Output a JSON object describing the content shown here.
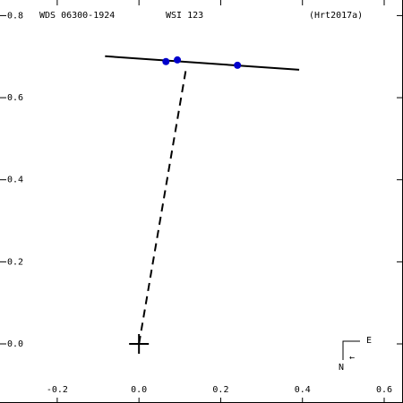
{
  "chart_data": {
    "type": "scatter",
    "title": "WDS 06300-1924",
    "subtitle": "WSI 123",
    "reference": "(Hrt2017a)",
    "x": [
      0.066,
      0.094,
      0.241
    ],
    "y": [
      0.688,
      0.692,
      0.679
    ],
    "color": "#0000cc",
    "orbit_line": {
      "x": [
        -0.083,
        0.392
      ],
      "y": [
        0.701,
        0.668
      ]
    },
    "residual_line": {
      "x": [
        0,
        0.116
      ],
      "y": [
        0,
        0.675
      ]
    },
    "origin": {
      "x": 0,
      "y": 0
    },
    "compass": {
      "east": "E",
      "north": "N",
      "arrow": "←"
    },
    "xlim": [
      -0.34,
      0.646
    ],
    "ylim": [
      -0.144,
      0.838
    ],
    "xticks": [
      -0.2,
      {
        "value": 0,
        "label": "0.0"
      },
      0.2,
      0.4,
      0.6
    ],
    "yticks": [
      {
        "value": 0,
        "label": "0.0"
      },
      0.2,
      0.4,
      0.6,
      0.8
    ]
  }
}
